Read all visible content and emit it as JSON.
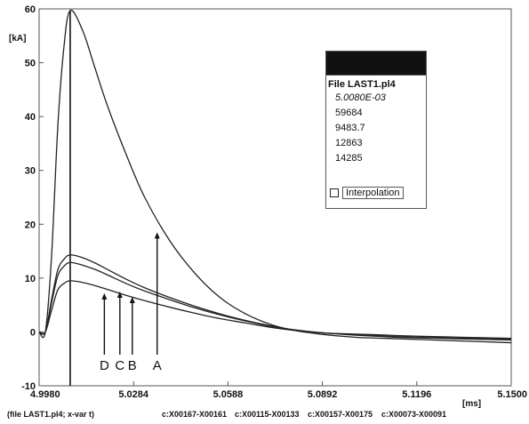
{
  "chart_data": {
    "type": "line",
    "ylabel": "[kA]",
    "xunit": "[ms]",
    "xlim": [
      4.998,
      5.15
    ],
    "ylim": [
      -10,
      60
    ],
    "x_ticks": [
      "4.9980",
      "5.0284",
      "5.0588",
      "5.0892",
      "5.1196",
      "5.1500"
    ],
    "y_ticks": [
      "-10",
      "0",
      "10",
      "20",
      "30",
      "40",
      "50",
      "60"
    ],
    "cursor_x": 5.008,
    "series": [
      {
        "label": "A",
        "peak": 59.7,
        "x": [
          4.998,
          5.0,
          5.002,
          5.004,
          5.006,
          5.008,
          5.012,
          5.016,
          5.02,
          5.026,
          5.032,
          5.04,
          5.048,
          5.056,
          5.064,
          5.072,
          5.08,
          5.09,
          5.1,
          5.11,
          5.12,
          5.135,
          5.15
        ],
        "values": [
          0,
          0,
          14,
          38,
          53,
          59.7,
          56,
          49,
          42,
          33,
          25,
          17,
          11,
          6.5,
          3.5,
          1.5,
          0.3,
          -0.5,
          -1,
          -1.2,
          -1.4,
          -1.7,
          -2
        ]
      },
      {
        "label": "B",
        "peak": 14.3,
        "x": [
          4.998,
          5.0,
          5.002,
          5.004,
          5.006,
          5.008,
          5.012,
          5.016,
          5.02,
          5.026,
          5.032,
          5.04,
          5.048,
          5.056,
          5.064,
          5.072,
          5.08,
          5.09,
          5.1,
          5.11,
          5.12,
          5.135,
          5.15
        ],
        "values": [
          0,
          0,
          6,
          11.5,
          13.5,
          14.3,
          13.8,
          12.8,
          11.6,
          9.8,
          8.2,
          6.4,
          4.8,
          3.4,
          2.2,
          1.2,
          0.4,
          -0.2,
          -0.6,
          -0.9,
          -1.1,
          -1.3,
          -1.5
        ]
      },
      {
        "label": "C",
        "peak": 12.9,
        "x": [
          4.998,
          5.0,
          5.002,
          5.004,
          5.006,
          5.008,
          5.012,
          5.016,
          5.02,
          5.026,
          5.032,
          5.04,
          5.048,
          5.056,
          5.064,
          5.072,
          5.08,
          5.09,
          5.1,
          5.11,
          5.12,
          5.135,
          5.15
        ],
        "values": [
          0,
          0,
          5.4,
          10.4,
          12.2,
          12.9,
          12.4,
          11.6,
          10.6,
          9.0,
          7.6,
          6.0,
          4.5,
          3.2,
          2.1,
          1.1,
          0.4,
          -0.2,
          -0.5,
          -0.8,
          -1.0,
          -1.2,
          -1.4
        ]
      },
      {
        "label": "D",
        "peak": 9.5,
        "x": [
          4.998,
          5.0,
          5.002,
          5.004,
          5.006,
          5.008,
          5.012,
          5.016,
          5.02,
          5.026,
          5.032,
          5.04,
          5.048,
          5.056,
          5.064,
          5.072,
          5.08,
          5.09,
          5.1,
          5.11,
          5.12,
          5.135,
          5.15
        ],
        "values": [
          0,
          0,
          4,
          7.8,
          9.0,
          9.5,
          9.2,
          8.6,
          7.9,
          6.8,
          5.8,
          4.6,
          3.5,
          2.5,
          1.7,
          0.9,
          0.3,
          -0.2,
          -0.4,
          -0.6,
          -0.8,
          -1.0,
          -1.2
        ]
      }
    ],
    "arrows": [
      {
        "label": "A",
        "x": 5.036,
        "y_tip": 18.5
      },
      {
        "label": "B",
        "x": 5.028,
        "y_tip": 6.5
      },
      {
        "label": "C",
        "x": 5.024,
        "y_tip": 7.5
      },
      {
        "label": "D",
        "x": 5.019,
        "y_tip": 7.2
      }
    ],
    "footer": [
      "(file LAST1.pl4; x-var t)",
      "c:X00167-X00161",
      "c:X00115-X00133",
      "c:X00157-X00175",
      "c:X00073-X00091"
    ]
  },
  "readout": {
    "file": "File LAST1.pl4",
    "time": "5.0080E-03",
    "values": [
      "59684",
      "9483.7",
      "12863",
      "14285"
    ],
    "interpolation_label": "Interpolation"
  }
}
